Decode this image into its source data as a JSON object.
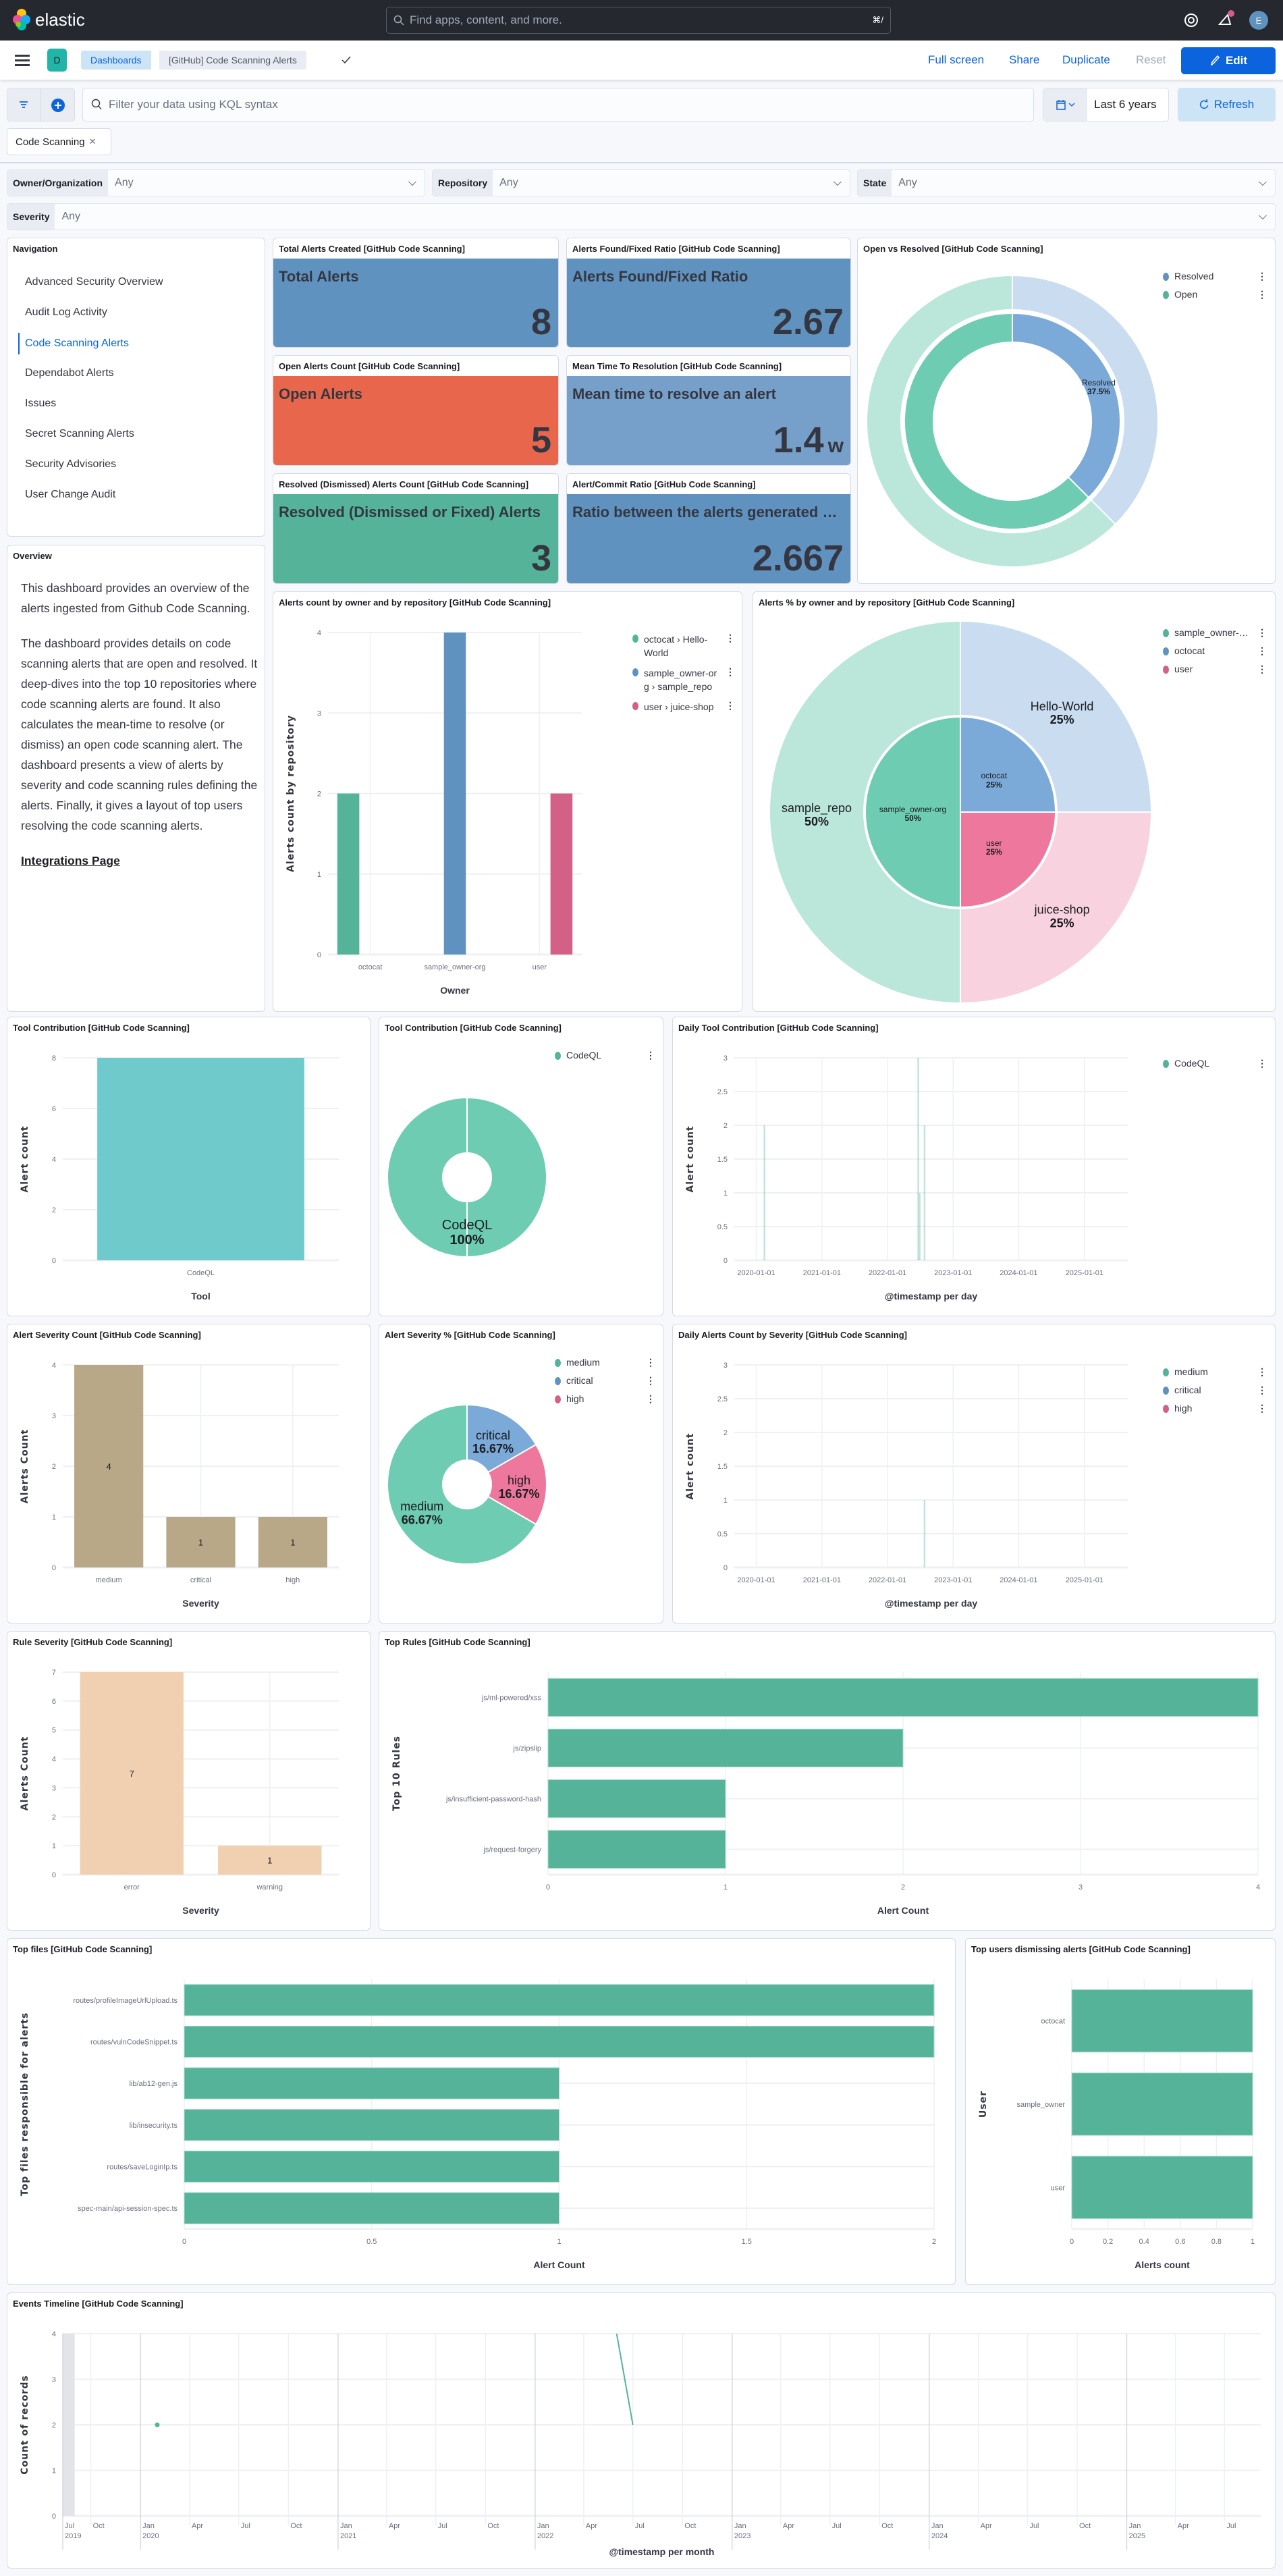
{
  "header": {
    "logo": "elastic",
    "search_placeholder": "Find apps, content, and more.",
    "shortcut": "⌘/"
  },
  "nav": {
    "space_badge": "D",
    "breadcrumbs": [
      "Dashboards",
      "[GitHub] Code Scanning Alerts"
    ],
    "actions": {
      "full_screen": "Full screen",
      "share": "Share",
      "duplicate": "Duplicate",
      "reset": "Reset",
      "edit": "Edit"
    }
  },
  "query": {
    "placeholder": "Filter your data using KQL syntax",
    "time_range": "Last 6 years",
    "refresh": "Refresh"
  },
  "filters": [
    {
      "label": "Code Scanning"
    }
  ],
  "controls": [
    {
      "label": "Owner/Organization",
      "value": "Any"
    },
    {
      "label": "Repository",
      "value": "Any"
    },
    {
      "label": "State",
      "value": "Any"
    },
    {
      "label": "Severity",
      "value": "Any"
    }
  ],
  "navigation": {
    "title": "Navigation",
    "items": [
      {
        "label": "Advanced Security Overview"
      },
      {
        "label": "Audit Log Activity"
      },
      {
        "label": "Code Scanning Alerts",
        "active": true
      },
      {
        "label": "Dependabot Alerts"
      },
      {
        "label": "Issues"
      },
      {
        "label": "Secret Scanning Alerts"
      },
      {
        "label": "Security Advisories"
      },
      {
        "label": "User Change Audit"
      }
    ]
  },
  "overview": {
    "title": "Overview",
    "paragraphs": [
      "This dashboard provides an overview of the alerts ingested from Github Code Scanning.",
      "The dashboard provides details on code scanning alerts that are open and resolved. It deep-dives into the top 10 repositories where code scanning alerts are found. It also calculates the mean-time to resolve (or dismiss) an open code scanning alert. The dashboard presents a view of alerts by severity and code scanning rules defining the alerts. Finally, it gives a layout of top users resolving the code scanning alerts."
    ],
    "link": "Integrations Page"
  },
  "metrics": [
    {
      "title": "Total Alerts Created [GitHub Code Scanning]",
      "label": "Total Alerts",
      "value": "8",
      "color": "#6092C0"
    },
    {
      "title": "Alerts Found/Fixed Ratio [GitHub Code Scanning]",
      "label": "Alerts Found/Fixed Ratio",
      "value": "2.67",
      "color": "#6092C0"
    },
    {
      "title": "Open Alerts Count [GitHub Code Scanning]",
      "label": "Open Alerts",
      "value": "5",
      "color": "#E7664C"
    },
    {
      "title": "Mean Time To Resolution [GitHub Code Scanning]",
      "label": "Mean time to resolve an alert",
      "value": "1.4",
      "unit": "w",
      "color": "#76A0C9"
    },
    {
      "title": "Resolved (Dismissed) Alerts Count [GitHub Code Scanning]",
      "label": "Resolved (Dismissed or Fixed) Alerts",
      "value": "3",
      "color": "#54B399"
    },
    {
      "title": "Alert/Commit Ratio [GitHub Code Scanning]",
      "label": "Ratio between the alerts generated and commits",
      "value": "2.667",
      "color": "#6092C0"
    }
  ],
  "chart_data": [
    {
      "type": "pie",
      "title": "Open vs Resolved [GitHub Code Scanning]",
      "legend": [
        "Resolved",
        "Open"
      ],
      "legend_colors": [
        "#6092C0",
        "#54B399"
      ],
      "legend_position": "top-right",
      "rings": [
        {
          "slices": [
            {
              "name": "Resolved",
              "pct": "37.5%",
              "value": 37.5,
              "color": "#7BAAD9",
              "show_label": true
            },
            {
              "name": "Open",
              "pct": "62.5%",
              "value": 62.5,
              "color": "#6DCCB1"
            }
          ]
        },
        {
          "slices": [
            {
              "name": "Resolved",
              "value": 37.5,
              "color": "#C9DCF0"
            },
            {
              "name": "Open",
              "value": 62.5,
              "color": "#BBE6DA"
            }
          ]
        }
      ]
    },
    {
      "type": "bar",
      "title": "Alerts count by owner and by repository [GitHub Code Scanning]",
      "categories": [
        "octocat",
        "sample_owner-org",
        "user"
      ],
      "series": [
        {
          "name": "octocat › Hello-World",
          "color": "#54B399",
          "values": [
            2,
            0,
            0
          ]
        },
        {
          "name": "sample_owner-org › sample_repo",
          "color": "#6092C0",
          "values": [
            0,
            4,
            0
          ]
        },
        {
          "name": "user › juice-shop",
          "color": "#D36086",
          "values": [
            0,
            0,
            2
          ]
        }
      ],
      "xlabel": "Owner",
      "ylabel": "Alerts count by repository",
      "ylim": [
        0,
        4
      ],
      "yticks": [
        0,
        1,
        2,
        3,
        4
      ],
      "grid": true,
      "legend_position": "top-right"
    },
    {
      "type": "pie",
      "title": "Alerts % by owner and by repository [GitHub Code Scanning]",
      "legend": [
        "sample_owner-org",
        "octocat",
        "user"
      ],
      "legend_colors": [
        "#54B399",
        "#6092C0",
        "#D36086"
      ],
      "legend_position": "top-right",
      "rings": [
        {
          "slices": [
            {
              "name": "octocat",
              "pct": "25%",
              "value": 25,
              "color": "#7BAAD9",
              "show_label": true
            },
            {
              "name": "user",
              "pct": "25%",
              "value": 25,
              "color": "#EE789D",
              "show_label": true
            },
            {
              "name": "sample_owner-org",
              "pct": "50%",
              "value": 50,
              "color": "#6DCCB1",
              "show_label": true
            }
          ]
        },
        {
          "slices": [
            {
              "name": "Hello-World",
              "pct": "25%",
              "value": 25,
              "color": "#C9DCF0",
              "show_label": true
            },
            {
              "name": "juice-shop",
              "pct": "25%",
              "value": 25,
              "color": "#F8D3DF",
              "show_label": true
            },
            {
              "name": "sample_repo",
              "pct": "50%",
              "value": 50,
              "color": "#BBE6DA",
              "show_label": true
            }
          ]
        }
      ]
    },
    {
      "type": "bar",
      "title": "Tool Contribution [GitHub Code Scanning]",
      "categories": [
        "CodeQL"
      ],
      "series": [
        {
          "color": "#6FCACC",
          "values": [
            8
          ]
        }
      ],
      "xlabel": "Tool",
      "ylabel": "Alert count",
      "ylim": [
        0,
        8
      ],
      "yticks": [
        0,
        2,
        4,
        6,
        8
      ],
      "grid": true
    },
    {
      "type": "pie",
      "title": "Tool Contribution [GitHub Code Scanning]",
      "legend": [
        "CodeQL"
      ],
      "legend_colors": [
        "#54B399"
      ],
      "legend_position": "top-right",
      "rings": [
        {
          "slices": [
            {
              "name": "CodeQL",
              "pct": "100%",
              "value": 100,
              "color": "#6DCCB1",
              "show_label": true
            }
          ]
        }
      ]
    },
    {
      "type": "bar",
      "title": "Daily Tool Contribution [GitHub Code Scanning]",
      "xlabel": "@timestamp per day",
      "ylabel": "Alert count",
      "xlim": [
        "2019-09-01",
        "2025-08-30"
      ],
      "ylim": [
        0,
        3
      ],
      "yticks": [
        0,
        0.5,
        1,
        1.5,
        2,
        2.5,
        3
      ],
      "xticks": [
        "2020-01-01",
        "2021-01-01",
        "2022-01-01",
        "2023-01-01",
        "2024-01-01",
        "2025-01-01"
      ],
      "series": [
        {
          "name": "CodeQL",
          "color": "#54B399",
          "points": [
            {
              "x": "2020-02-15",
              "y": 2
            },
            {
              "x": "2022-06-20",
              "y": 3
            },
            {
              "x": "2022-06-28",
              "y": 1
            },
            {
              "x": "2022-07-25",
              "y": 2
            }
          ]
        }
      ],
      "legend_position": "top-right"
    },
    {
      "type": "bar",
      "title": "Alert Severity Count [GitHub Code Scanning]",
      "categories": [
        "medium",
        "critical",
        "high"
      ],
      "series": [
        {
          "color": "#B9A888",
          "values": [
            4,
            1,
            1
          ],
          "labels": [
            "4",
            "1",
            "1"
          ]
        }
      ],
      "xlabel": "Severity",
      "ylabel": "Alerts Count",
      "ylim": [
        0,
        4
      ],
      "yticks": [
        0,
        1,
        2,
        3,
        4
      ],
      "grid": true
    },
    {
      "type": "pie",
      "title": "Alert Severity % [GitHub Code Scanning]",
      "legend": [
        "medium",
        "critical",
        "high"
      ],
      "legend_colors": [
        "#54B399",
        "#6092C0",
        "#D36086"
      ],
      "legend_position": "top-right",
      "rings": [
        {
          "slices": [
            {
              "name": "critical",
              "pct": "16.67%",
              "value": 16.67,
              "color": "#7BAAD9",
              "show_label": true
            },
            {
              "name": "high",
              "pct": "16.67%",
              "value": 16.67,
              "color": "#EE789D",
              "show_label": true
            },
            {
              "name": "medium",
              "pct": "66.67%",
              "value": 66.67,
              "color": "#6DCCB1",
              "show_label": true
            }
          ]
        }
      ]
    },
    {
      "type": "bar",
      "title": "Daily Alerts Count by Severity [GitHub Code Scanning]",
      "xlabel": "@timestamp per day",
      "ylabel": "Alert count",
      "xlim": [
        "2019-09-01",
        "2025-08-30"
      ],
      "ylim": [
        0,
        3
      ],
      "yticks": [
        0,
        0.5,
        1,
        1.5,
        2,
        2.5,
        3
      ],
      "xticks": [
        "2020-01-01",
        "2021-01-01",
        "2022-01-01",
        "2023-01-01",
        "2024-01-01",
        "2025-01-01"
      ],
      "series": [
        {
          "name": "medium",
          "color": "#54B399",
          "points": [
            {
              "x": "2022-07-25",
              "y": 1
            }
          ]
        },
        {
          "name": "critical",
          "color": "#6092C0",
          "points": []
        },
        {
          "name": "high",
          "color": "#D36086",
          "points": []
        }
      ],
      "legend_position": "top-right"
    },
    {
      "type": "bar",
      "title": "Rule Severity [GitHub Code Scanning]",
      "categories": [
        "error",
        "warning"
      ],
      "series": [
        {
          "color": "#F1D0B1",
          "values": [
            7,
            1
          ],
          "labels": [
            "7",
            "1"
          ]
        }
      ],
      "xlabel": "Severity",
      "ylabel": "Alerts Count",
      "ylim": [
        0,
        7
      ],
      "yticks": [
        0,
        1,
        2,
        3,
        4,
        5,
        6,
        7
      ],
      "grid": true
    },
    {
      "type": "bar",
      "orientation": "horizontal",
      "title": "Top Rules [GitHub Code Scanning]",
      "categories": [
        "js/ml-powered/xss",
        "js/zipslip",
        "js/insufficient-password-hash",
        "js/request-forgery"
      ],
      "values": [
        4,
        2,
        1,
        1
      ],
      "color": "#54B399",
      "xlabel": "Alert Count",
      "ylabel": "Top 10 Rules",
      "xlim": [
        0,
        4
      ],
      "xticks": [
        0,
        1,
        2,
        3,
        4
      ],
      "grid": true
    },
    {
      "type": "bar",
      "orientation": "horizontal",
      "title": "Top files [GitHub Code Scanning]",
      "categories": [
        "routes/profileImageUrlUpload.ts",
        "routes/vulnCodeSnippet.ts",
        "lib/ab12-gen.js",
        "lib/insecurity.ts",
        "routes/saveLoginIp.ts",
        "spec-main/api-session-spec.ts"
      ],
      "values": [
        2,
        2,
        1,
        1,
        1,
        1
      ],
      "color": "#54B399",
      "xlabel": "Alert Count",
      "ylabel": "Top files responsible for alerts",
      "xlim": [
        0,
        2
      ],
      "xticks": [
        0,
        0.5,
        1,
        1.5,
        2
      ],
      "grid": true
    },
    {
      "type": "bar",
      "orientation": "horizontal",
      "title": "Top users dismissing alerts [GitHub Code Scanning]",
      "categories": [
        "octocat",
        "sample_owner",
        "user"
      ],
      "values": [
        1,
        1,
        1
      ],
      "color": "#54B399",
      "xlabel": "Alerts count",
      "ylabel": "User",
      "xlim": [
        0,
        1
      ],
      "xticks": [
        0,
        0.2,
        0.4,
        0.6,
        0.8,
        1
      ],
      "grid": true
    },
    {
      "type": "line",
      "title": "Events Timeline [GitHub Code Scanning]",
      "xlabel": "@timestamp per month",
      "ylabel": "Count of records",
      "xlim": [
        "2019-08-10",
        "2025-09-06"
      ],
      "ylim": [
        0,
        4
      ],
      "yticks": [
        0,
        1,
        2,
        3,
        4
      ],
      "xticks": [
        {
          "date": "2019-07-01",
          "label": "Jul",
          "sub": "2019"
        },
        {
          "date": "2019-10-01",
          "label": "Oct"
        },
        {
          "date": "2020-01-01",
          "label": "Jan",
          "sub": "2020"
        },
        {
          "date": "2020-04-01",
          "label": "Apr"
        },
        {
          "date": "2020-07-01",
          "label": "Jul"
        },
        {
          "date": "2020-10-01",
          "label": "Oct"
        },
        {
          "date": "2021-01-01",
          "label": "Jan",
          "sub": "2021"
        },
        {
          "date": "2021-04-01",
          "label": "Apr"
        },
        {
          "date": "2021-07-01",
          "label": "Jul"
        },
        {
          "date": "2021-10-01",
          "label": "Oct"
        },
        {
          "date": "2022-01-01",
          "label": "Jan",
          "sub": "2022"
        },
        {
          "date": "2022-04-01",
          "label": "Apr"
        },
        {
          "date": "2022-07-01",
          "label": "Jul"
        },
        {
          "date": "2022-10-01",
          "label": "Oct"
        },
        {
          "date": "2023-01-01",
          "label": "Jan",
          "sub": "2023"
        },
        {
          "date": "2023-04-01",
          "label": "Apr"
        },
        {
          "date": "2023-07-01",
          "label": "Jul"
        },
        {
          "date": "2023-10-01",
          "label": "Oct"
        },
        {
          "date": "2024-01-01",
          "label": "Jan",
          "sub": "2024"
        },
        {
          "date": "2024-04-01",
          "label": "Apr"
        },
        {
          "date": "2024-07-01",
          "label": "Jul"
        },
        {
          "date": "2024-10-01",
          "label": "Oct"
        },
        {
          "date": "2025-01-01",
          "label": "Jan",
          "sub": "2025"
        },
        {
          "date": "2025-04-01",
          "label": "Apr"
        },
        {
          "date": "2025-07-01",
          "label": "Jul"
        }
      ],
      "series": [
        {
          "color": "#54B399",
          "points": [
            {
              "x": "2020-02-01",
              "y": 2
            },
            {
              "x": "2022-06-01",
              "y": 4
            },
            {
              "x": "2022-07-01",
              "y": 2
            }
          ]
        }
      ]
    }
  ]
}
